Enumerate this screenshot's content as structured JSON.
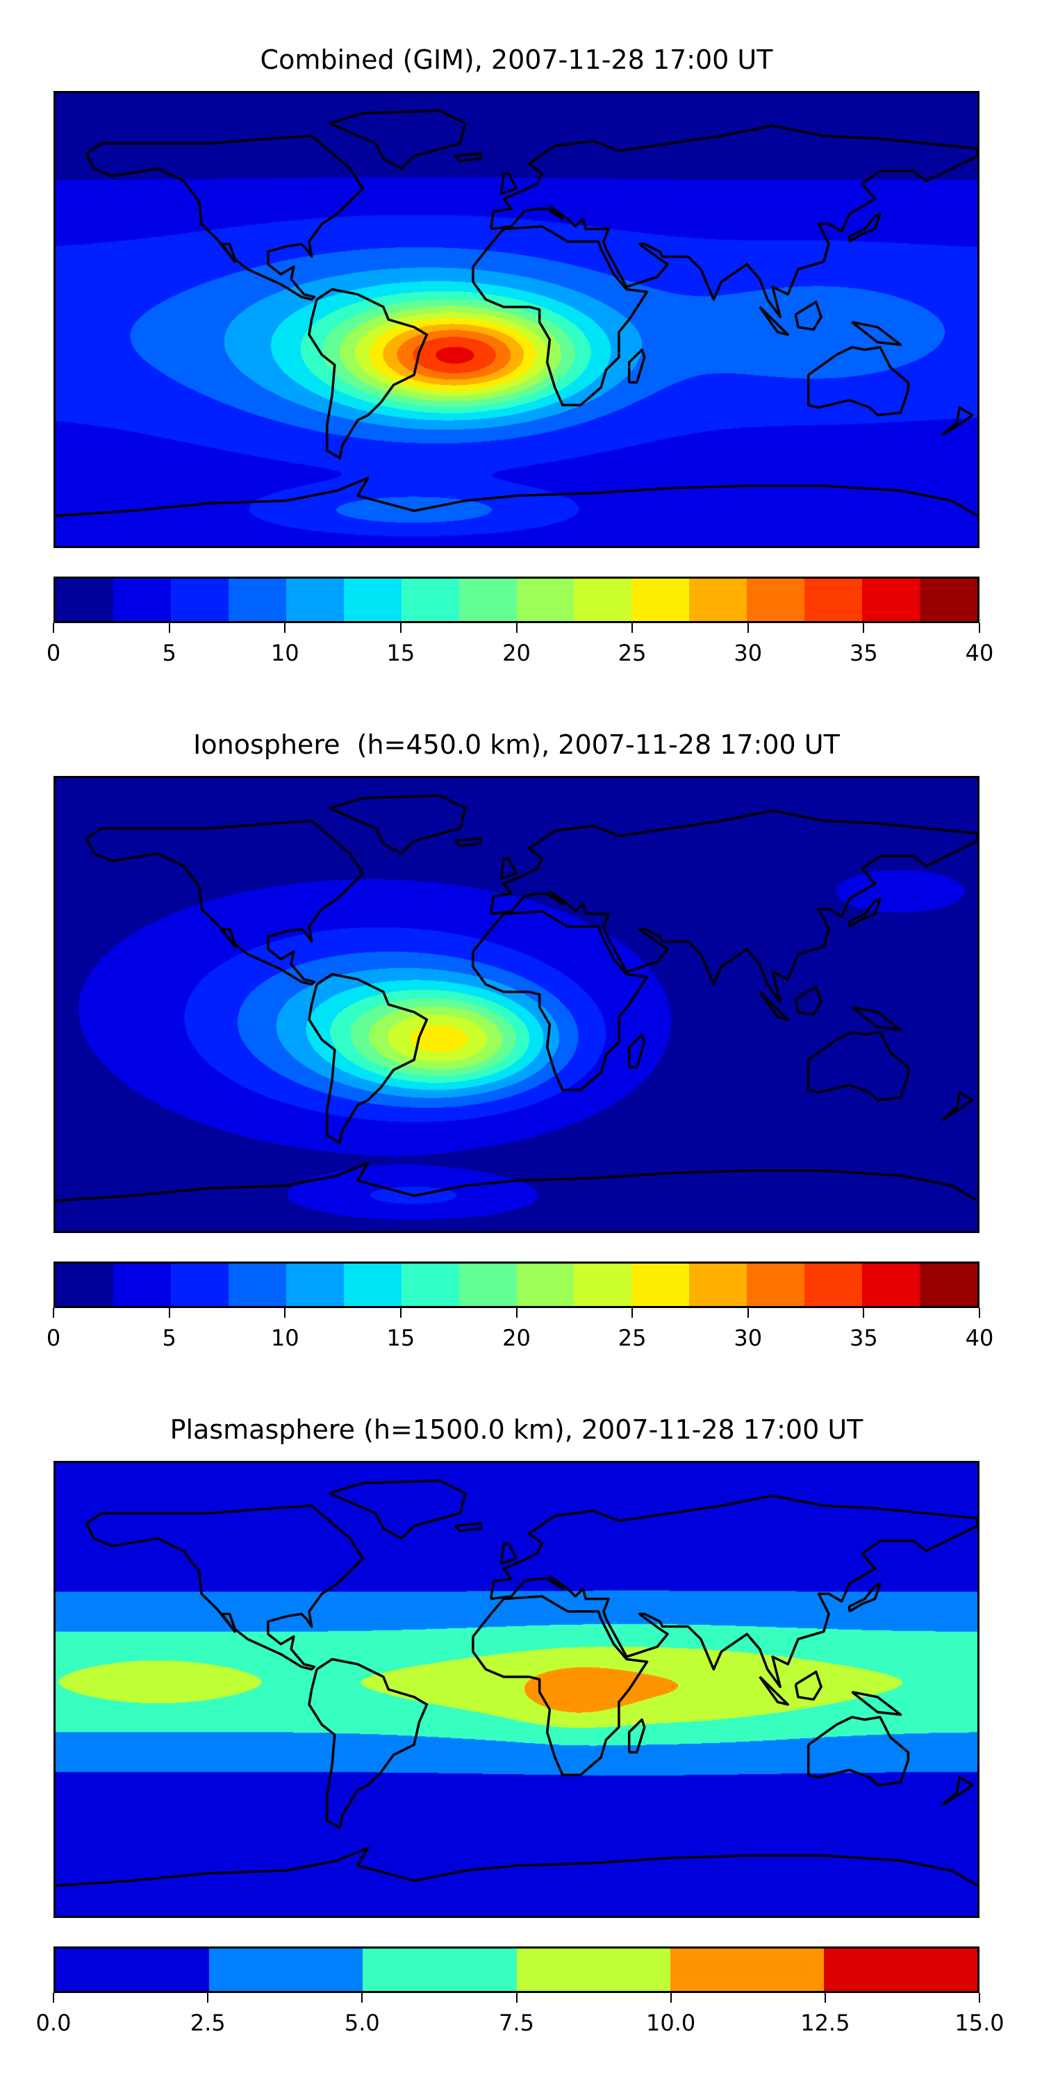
{
  "chart_data": [
    {
      "type": "heatmap",
      "title": "Combined (GIM), 2007-11-28 17:00 UT",
      "projection": "plate carree world map with coastlines",
      "colorbar": {
        "levels": [
          0,
          2.5,
          5,
          7.5,
          10,
          12.5,
          15,
          17.5,
          20,
          22.5,
          25,
          27.5,
          30,
          32.5,
          35,
          37.5,
          40
        ],
        "ticks": [
          0,
          5,
          10,
          15,
          20,
          25,
          30,
          35,
          40
        ],
        "tick_labels": [
          "0",
          "5",
          "10",
          "15",
          "20",
          "25",
          "30",
          "35",
          "40"
        ],
        "colors": [
          "#00009a",
          "#0000e6",
          "#0020ff",
          "#0062ff",
          "#00a2ff",
          "#00e4f8",
          "#32ffc6",
          "#64ff94",
          "#9cff58",
          "#ccff2c",
          "#ffee00",
          "#ffb000",
          "#ff7400",
          "#ff3c00",
          "#e60000",
          "#9a0000"
        ],
        "range": [
          0,
          40
        ]
      },
      "field_summary": {
        "max_approx": 34,
        "max_location": "South Atlantic / eastern Brazil",
        "min_approx": 1
      }
    },
    {
      "type": "heatmap",
      "title": "Ionosphere  (h=450.0 km), 2007-11-28 17:00 UT",
      "projection": "plate carree world map with coastlines",
      "colorbar": {
        "levels": [
          0,
          2.5,
          5,
          7.5,
          10,
          12.5,
          15,
          17.5,
          20,
          22.5,
          25,
          27.5,
          30,
          32.5,
          35,
          37.5,
          40
        ],
        "ticks": [
          0,
          5,
          10,
          15,
          20,
          25,
          30,
          35,
          40
        ],
        "tick_labels": [
          "0",
          "5",
          "10",
          "15",
          "20",
          "25",
          "30",
          "35",
          "40"
        ],
        "colors": [
          "#00009a",
          "#0000e6",
          "#0020ff",
          "#0062ff",
          "#00a2ff",
          "#00e4f8",
          "#32ffc6",
          "#64ff94",
          "#9cff58",
          "#ccff2c",
          "#ffee00",
          "#ffb000",
          "#ff7400",
          "#ff3c00",
          "#e60000",
          "#9a0000"
        ],
        "range": [
          0,
          40
        ]
      },
      "field_summary": {
        "max_approx": 26,
        "max_location": "South Atlantic / eastern Brazil",
        "min_approx": 0.5
      }
    },
    {
      "type": "heatmap",
      "title": "Plasmasphere (h=1500.0 km), 2007-11-28 17:00 UT",
      "projection": "plate carree world map with coastlines",
      "colorbar": {
        "levels": [
          0,
          2.5,
          5,
          7.5,
          10,
          12.5,
          15
        ],
        "ticks": [
          0,
          2.5,
          5,
          7.5,
          10,
          12.5,
          15
        ],
        "tick_labels": [
          "0.0",
          "2.5",
          "5.0",
          "7.5",
          "10.0",
          "12.5",
          "15.0"
        ],
        "colors": [
          "#0000dd",
          "#0080ff",
          "#36ffc0",
          "#c0ff36",
          "#ff9400",
          "#dd0000"
        ],
        "range": [
          0,
          15
        ]
      },
      "field_summary": {
        "max_approx": 12,
        "max_location": "Central Africa",
        "min_approx": 1
      }
    }
  ]
}
